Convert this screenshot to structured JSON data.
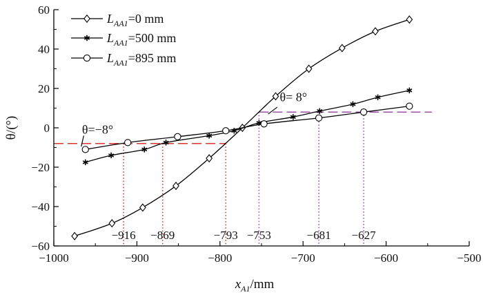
{
  "chart_data": {
    "type": "line",
    "xlabel": "x",
    "xlabel_sub": "A1",
    "xlabel_unit": "/mm",
    "ylabel": "θ/(°)",
    "xlim": [
      -1000,
      -500
    ],
    "ylim": [
      -60,
      60
    ],
    "xticks": [
      -1000,
      -900,
      -800,
      -700,
      -600,
      -500
    ],
    "yticks": [
      -60,
      -40,
      -20,
      0,
      20,
      40,
      60
    ],
    "grid": false,
    "legend_position": "top-left",
    "legend_prefix": "L",
    "legend_sub": "AA1",
    "series": [
      {
        "name": "=0 mm",
        "marker": "diamond",
        "color": "#000000",
        "x": [
          -975,
          -930,
          -893,
          -853,
          -813,
          -773,
          -733,
          -693,
          -653,
          -613,
          -572
        ],
        "y": [
          -55,
          -48.5,
          -40.5,
          -29.5,
          -15.5,
          0,
          16,
          30,
          40.5,
          49,
          55
        ]
      },
      {
        "name": "=500 mm",
        "marker": "asterisk",
        "color": "#000000",
        "x": [
          -962,
          -931,
          -891,
          -865,
          -813,
          -783,
          -753,
          -712,
          -680,
          -640,
          -610,
          -572
        ],
        "y": [
          -17.5,
          -14,
          -11,
          -7.5,
          -4,
          -1.5,
          2.5,
          5.5,
          8.5,
          12,
          15.5,
          19
        ]
      },
      {
        "name": "=895 mm",
        "marker": "circle",
        "color": "#000000",
        "x": [
          -962,
          -911,
          -851,
          -793,
          -747,
          -681,
          -627,
          -572
        ],
        "y": [
          -11,
          -7.5,
          -4.5,
          -1.5,
          2,
          5,
          8,
          11
        ]
      }
    ],
    "annotations": [
      {
        "text": "θ=−8°",
        "x": -966,
        "y": -3
      },
      {
        "text": "θ= 8°",
        "x": -728,
        "y": 13.5
      }
    ],
    "reference_lines": [
      {
        "axis": "y",
        "value": -8,
        "from": -1000,
        "to": -793,
        "color": "#d9342b"
      },
      {
        "axis": "y",
        "value": 8,
        "from": -753,
        "to": -545,
        "color": "#9b4fa5"
      }
    ],
    "drop_lines": [
      {
        "x": -916,
        "y": -8,
        "label": "−916",
        "color": "#d9342b"
      },
      {
        "x": -869,
        "y": -8,
        "label": "−869",
        "color": "#d9342b"
      },
      {
        "x": -793,
        "y": -8,
        "label": "−793",
        "color": "#d9342b"
      },
      {
        "x": -753,
        "y": 8,
        "label": "−753",
        "color": "#9b4fa5"
      },
      {
        "x": -681,
        "y": 8,
        "label": "−681",
        "color": "#9b4fa5"
      },
      {
        "x": -627,
        "y": 8,
        "label": "−627",
        "color": "#9b4fa5"
      }
    ]
  }
}
